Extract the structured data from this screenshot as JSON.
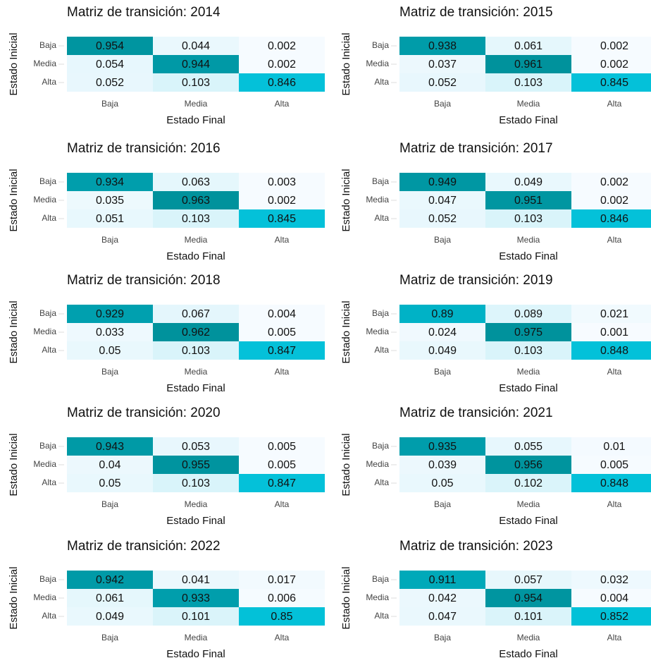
{
  "chart_data": [
    {
      "type": "heatmap",
      "title": "Matriz de transición: 2014",
      "x_label": "Estado Final",
      "y_label": "Estado Inicial",
      "x_categories": [
        "Baja",
        "Media",
        "Alta"
      ],
      "y_categories": [
        "Baja",
        "Media",
        "Alta"
      ],
      "values": [
        [
          0.954,
          0.044,
          0.002
        ],
        [
          0.054,
          0.944,
          0.002
        ],
        [
          0.052,
          0.103,
          0.846
        ]
      ],
      "colors": [
        "#f7fbff",
        "#00c0d8",
        "#00929c"
      ]
    },
    {
      "type": "heatmap",
      "title": "Matriz de transición: 2015",
      "x_label": "Estado Final",
      "y_label": "Estado Inicial",
      "x_categories": [
        "Baja",
        "Media",
        "Alta"
      ],
      "y_categories": [
        "Baja",
        "Media",
        "Alta"
      ],
      "values": [
        [
          0.938,
          0.061,
          0.002
        ],
        [
          0.037,
          0.961,
          0.002
        ],
        [
          0.052,
          0.103,
          0.845
        ]
      ],
      "colors": [
        "#f7fbff",
        "#00c0d8",
        "#00929c"
      ]
    },
    {
      "type": "heatmap",
      "title": "Matriz de transición: 2016",
      "x_label": "Estado Final",
      "y_label": "Estado Inicial",
      "x_categories": [
        "Baja",
        "Media",
        "Alta"
      ],
      "y_categories": [
        "Baja",
        "Media",
        "Alta"
      ],
      "values": [
        [
          0.934,
          0.063,
          0.003
        ],
        [
          0.035,
          0.963,
          0.002
        ],
        [
          0.051,
          0.103,
          0.845
        ]
      ],
      "colors": [
        "#f7fbff",
        "#00c0d8",
        "#00929c"
      ]
    },
    {
      "type": "heatmap",
      "title": "Matriz de transición: 2017",
      "x_label": "Estado Final",
      "y_label": "Estado Inicial",
      "x_categories": [
        "Baja",
        "Media",
        "Alta"
      ],
      "y_categories": [
        "Baja",
        "Media",
        "Alta"
      ],
      "values": [
        [
          0.949,
          0.049,
          0.002
        ],
        [
          0.047,
          0.951,
          0.002
        ],
        [
          0.052,
          0.103,
          0.846
        ]
      ],
      "colors": [
        "#f7fbff",
        "#00c0d8",
        "#00929c"
      ]
    },
    {
      "type": "heatmap",
      "title": "Matriz de transición: 2018",
      "x_label": "Estado Final",
      "y_label": "Estado Inicial",
      "x_categories": [
        "Baja",
        "Media",
        "Alta"
      ],
      "y_categories": [
        "Baja",
        "Media",
        "Alta"
      ],
      "values": [
        [
          0.929,
          0.067,
          0.004
        ],
        [
          0.033,
          0.962,
          0.005
        ],
        [
          0.05,
          0.103,
          0.847
        ]
      ],
      "colors": [
        "#f7fbff",
        "#00c0d8",
        "#00929c"
      ]
    },
    {
      "type": "heatmap",
      "title": "Matriz de transición: 2019",
      "x_label": "Estado Final",
      "y_label": "Estado Inicial",
      "x_categories": [
        "Baja",
        "Media",
        "Alta"
      ],
      "y_categories": [
        "Baja",
        "Media",
        "Alta"
      ],
      "values": [
        [
          0.89,
          0.089,
          0.021
        ],
        [
          0.024,
          0.975,
          0.001
        ],
        [
          0.049,
          0.103,
          0.848
        ]
      ],
      "colors": [
        "#f7fbff",
        "#00c0d8",
        "#00929c"
      ]
    },
    {
      "type": "heatmap",
      "title": "Matriz de transición: 2020",
      "x_label": "Estado Final",
      "y_label": "Estado Inicial",
      "x_categories": [
        "Baja",
        "Media",
        "Alta"
      ],
      "y_categories": [
        "Baja",
        "Media",
        "Alta"
      ],
      "values": [
        [
          0.943,
          0.053,
          0.005
        ],
        [
          0.04,
          0.955,
          0.005
        ],
        [
          0.05,
          0.103,
          0.847
        ]
      ],
      "colors": [
        "#f7fbff",
        "#00c0d8",
        "#00929c"
      ]
    },
    {
      "type": "heatmap",
      "title": "Matriz de transición: 2021",
      "x_label": "Estado Final",
      "y_label": "Estado Inicial",
      "x_categories": [
        "Baja",
        "Media",
        "Alta"
      ],
      "y_categories": [
        "Baja",
        "Media",
        "Alta"
      ],
      "values": [
        [
          0.935,
          0.055,
          0.01
        ],
        [
          0.039,
          0.956,
          0.005
        ],
        [
          0.05,
          0.102,
          0.848
        ]
      ],
      "colors": [
        "#f7fbff",
        "#00c0d8",
        "#00929c"
      ]
    },
    {
      "type": "heatmap",
      "title": "Matriz de transición: 2022",
      "x_label": "Estado Final",
      "y_label": "Estado Inicial",
      "x_categories": [
        "Baja",
        "Media",
        "Alta"
      ],
      "y_categories": [
        "Baja",
        "Media",
        "Alta"
      ],
      "values": [
        [
          0.942,
          0.041,
          0.017
        ],
        [
          0.061,
          0.933,
          0.006
        ],
        [
          0.049,
          0.101,
          0.85
        ]
      ],
      "colors": [
        "#f7fbff",
        "#00c0d8",
        "#00929c"
      ]
    },
    {
      "type": "heatmap",
      "title": "Matriz de transición: 2023",
      "x_label": "Estado Final",
      "y_label": "Estado Inicial",
      "x_categories": [
        "Baja",
        "Media",
        "Alta"
      ],
      "y_categories": [
        "Baja",
        "Media",
        "Alta"
      ],
      "values": [
        [
          0.911,
          0.057,
          0.032
        ],
        [
          0.042,
          0.954,
          0.004
        ],
        [
          0.047,
          0.101,
          0.852
        ]
      ],
      "colors": [
        "#f7fbff",
        "#00c0d8",
        "#00929c"
      ]
    }
  ]
}
